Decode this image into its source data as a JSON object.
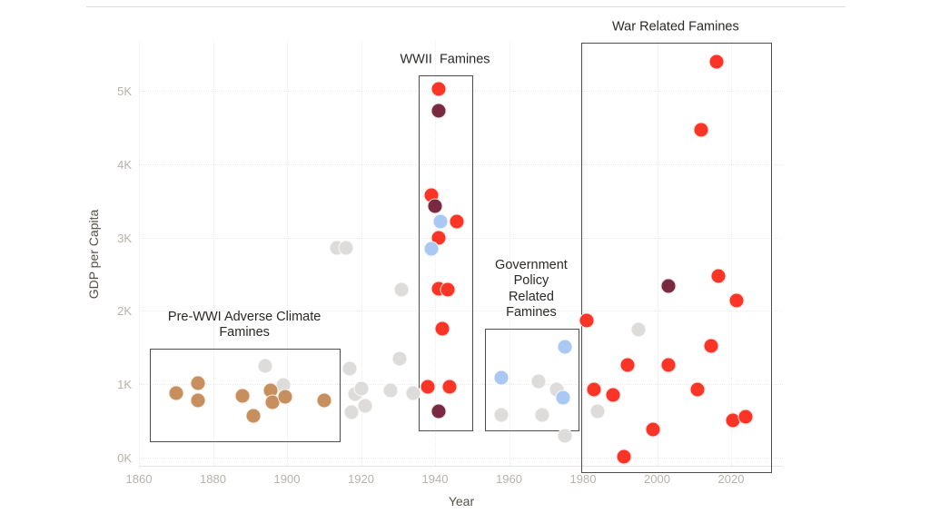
{
  "page": {
    "top_border": true
  },
  "chart_data": {
    "type": "scatter",
    "title": "",
    "xlabel": "Year",
    "ylabel": "GDP per Capita",
    "x_ticks": {
      "values": [
        1860,
        1880,
        1900,
        1920,
        1940,
        1960,
        1980,
        2000,
        2020
      ],
      "labels": [
        "1860",
        "1880",
        "1900",
        "1920",
        "1940",
        "1960",
        "1980",
        "2000",
        "2020"
      ]
    },
    "y_ticks": {
      "values": [
        0,
        1,
        2,
        3,
        4,
        5
      ],
      "labels": [
        "0K",
        "1K",
        "2K",
        "3K",
        "4K",
        "5K"
      ]
    },
    "xlim": [
      1857,
      2034
    ],
    "ylim": [
      -0.2,
      5.7
    ],
    "grid": true,
    "legend": "none",
    "colors": {
      "red": "#fa3527",
      "maroon": "#792a41",
      "blue": "#a9c8f3",
      "tan": "#c78f5e",
      "gray": "#dddcda"
    },
    "series": [
      {
        "name": "unlabeled-famines",
        "color_key": "gray",
        "points": [
          [
            1894,
            1.25
          ],
          [
            1899,
            0.99
          ],
          [
            1913.5,
            2.86
          ],
          [
            1916,
            2.86
          ],
          [
            1917,
            1.21
          ],
          [
            1917.5,
            0.62
          ],
          [
            1918.5,
            0.87
          ],
          [
            1920,
            0.94
          ],
          [
            1921,
            0.71
          ],
          [
            1928,
            0.92
          ],
          [
            1931,
            2.29
          ],
          [
            1930.5,
            1.35
          ],
          [
            1934,
            0.88
          ],
          [
            1958,
            0.58
          ],
          [
            1968,
            1.04
          ],
          [
            1969,
            0.58
          ],
          [
            1973,
            0.93
          ],
          [
            1975,
            0.3
          ],
          [
            1984,
            0.63
          ],
          [
            1995,
            1.75
          ]
        ]
      },
      {
        "name": "adverse-climate-famines",
        "color_key": "tan",
        "points": [
          [
            1870,
            0.88
          ],
          [
            1876,
            1.02
          ],
          [
            1876,
            0.78
          ],
          [
            1888,
            0.84
          ],
          [
            1891,
            0.57
          ],
          [
            1895.5,
            0.92
          ],
          [
            1896,
            0.76
          ],
          [
            1899.5,
            0.83
          ],
          [
            1910,
            0.78
          ]
        ]
      },
      {
        "name": "war-related-famines",
        "color_key": "red",
        "points": [
          [
            1941,
            5.03
          ],
          [
            1939,
            3.58
          ],
          [
            1946,
            3.22
          ],
          [
            1941,
            2.99
          ],
          [
            1941,
            2.3
          ],
          [
            1943.5,
            2.29
          ],
          [
            1942,
            1.76
          ],
          [
            1938,
            0.97
          ],
          [
            1944,
            0.97
          ],
          [
            2016,
            5.39
          ],
          [
            2012,
            4.47
          ],
          [
            2016.5,
            2.48
          ],
          [
            2021.5,
            2.14
          ],
          [
            1981,
            1.87
          ],
          [
            2014.5,
            1.52
          ],
          [
            1992,
            1.26
          ],
          [
            2003,
            1.26
          ],
          [
            1983,
            0.93
          ],
          [
            1988,
            0.86
          ],
          [
            2011,
            0.93
          ],
          [
            1999,
            0.38
          ],
          [
            2020.5,
            0.51
          ],
          [
            2024,
            0.56
          ],
          [
            1991,
            0.01
          ]
        ]
      },
      {
        "name": "severe-famines-dark",
        "color_key": "maroon",
        "points": [
          [
            1941,
            4.73
          ],
          [
            1940,
            3.43
          ],
          [
            1941,
            0.63
          ],
          [
            2003,
            2.34
          ]
        ]
      },
      {
        "name": "policy-famines",
        "color_key": "blue",
        "points": [
          [
            1941.5,
            3.22
          ],
          [
            1939,
            2.85
          ],
          [
            1975,
            1.51
          ],
          [
            1958,
            1.09
          ],
          [
            1974.5,
            0.82
          ]
        ]
      }
    ],
    "annotations": [
      {
        "id": "pre-wwi",
        "label": "Pre-WWI Adverse Climate\nFamines",
        "year_range": [
          1863,
          1914
        ],
        "gdp_range": [
          0.23,
          1.49
        ]
      },
      {
        "id": "wwii",
        "label": "WWII  Famines",
        "year_range": [
          1935.6,
          1949.8
        ],
        "gdp_range": [
          0.38,
          5.21
        ]
      },
      {
        "id": "gov-policy",
        "label": "Government\nPolicy\nRelated\nFamines",
        "year_range": [
          1953.5,
          1978.5
        ],
        "gdp_range": [
          0.38,
          1.76
        ]
      },
      {
        "id": "war-related",
        "label": "War Related Famines",
        "year_range": [
          1979.5,
          2030.5
        ],
        "gdp_range": [
          -0.18,
          5.65
        ]
      }
    ]
  }
}
